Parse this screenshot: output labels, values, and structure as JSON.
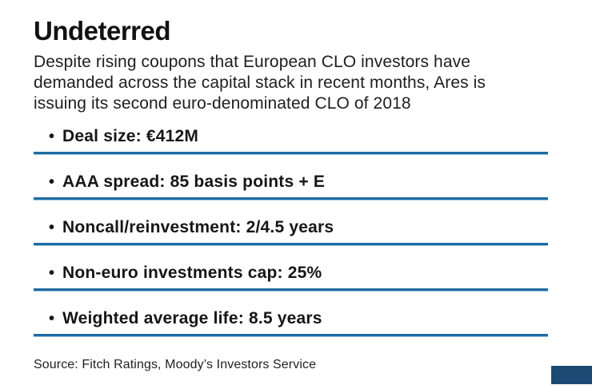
{
  "header": {
    "title": "Undeterred",
    "subtitle_lines": [
      "Despite rising coupons that European CLO investors have",
      "demanded across the capital stack in recent months, Ares is",
      "issuing its second euro-denominated CLO of 2018"
    ]
  },
  "bullets": [
    "Deal size: €412M",
    "AAA spread: 85 basis points + E",
    "Noncall/reinvestment: 2/4.5 years",
    "Non-euro investments cap: 25%",
    "Weighted average life: 8.5 years"
  ],
  "footer": {
    "source": "Source: Fitch Ratings, Moody’s Investors Service"
  },
  "icons": {
    "bullet": "•"
  },
  "colors": {
    "rule_blue": "#1d6ba3",
    "corner_block_navy": "#1b4a73",
    "text": "#1e1e1e"
  },
  "chart_data": {
    "type": "table",
    "title": "Undeterred",
    "subtitle": "Despite rising coupons that European CLO investors have demanded across the capital stack in recent months, Ares is issuing its second euro-denominated CLO of 2018",
    "rows": [
      {
        "label": "Deal size",
        "value": "€412M"
      },
      {
        "label": "AAA spread",
        "value": "85 basis points + E"
      },
      {
        "label": "Noncall/reinvestment",
        "value": "2/4.5 years"
      },
      {
        "label": "Non-euro investments cap",
        "value": "25%"
      },
      {
        "label": "Weighted average life",
        "value": "8.5 years"
      }
    ],
    "source": "Source: Fitch Ratings, Moody’s Investors Service",
    "layout": "bulleted fact list with blue horizontal rules under each item"
  }
}
